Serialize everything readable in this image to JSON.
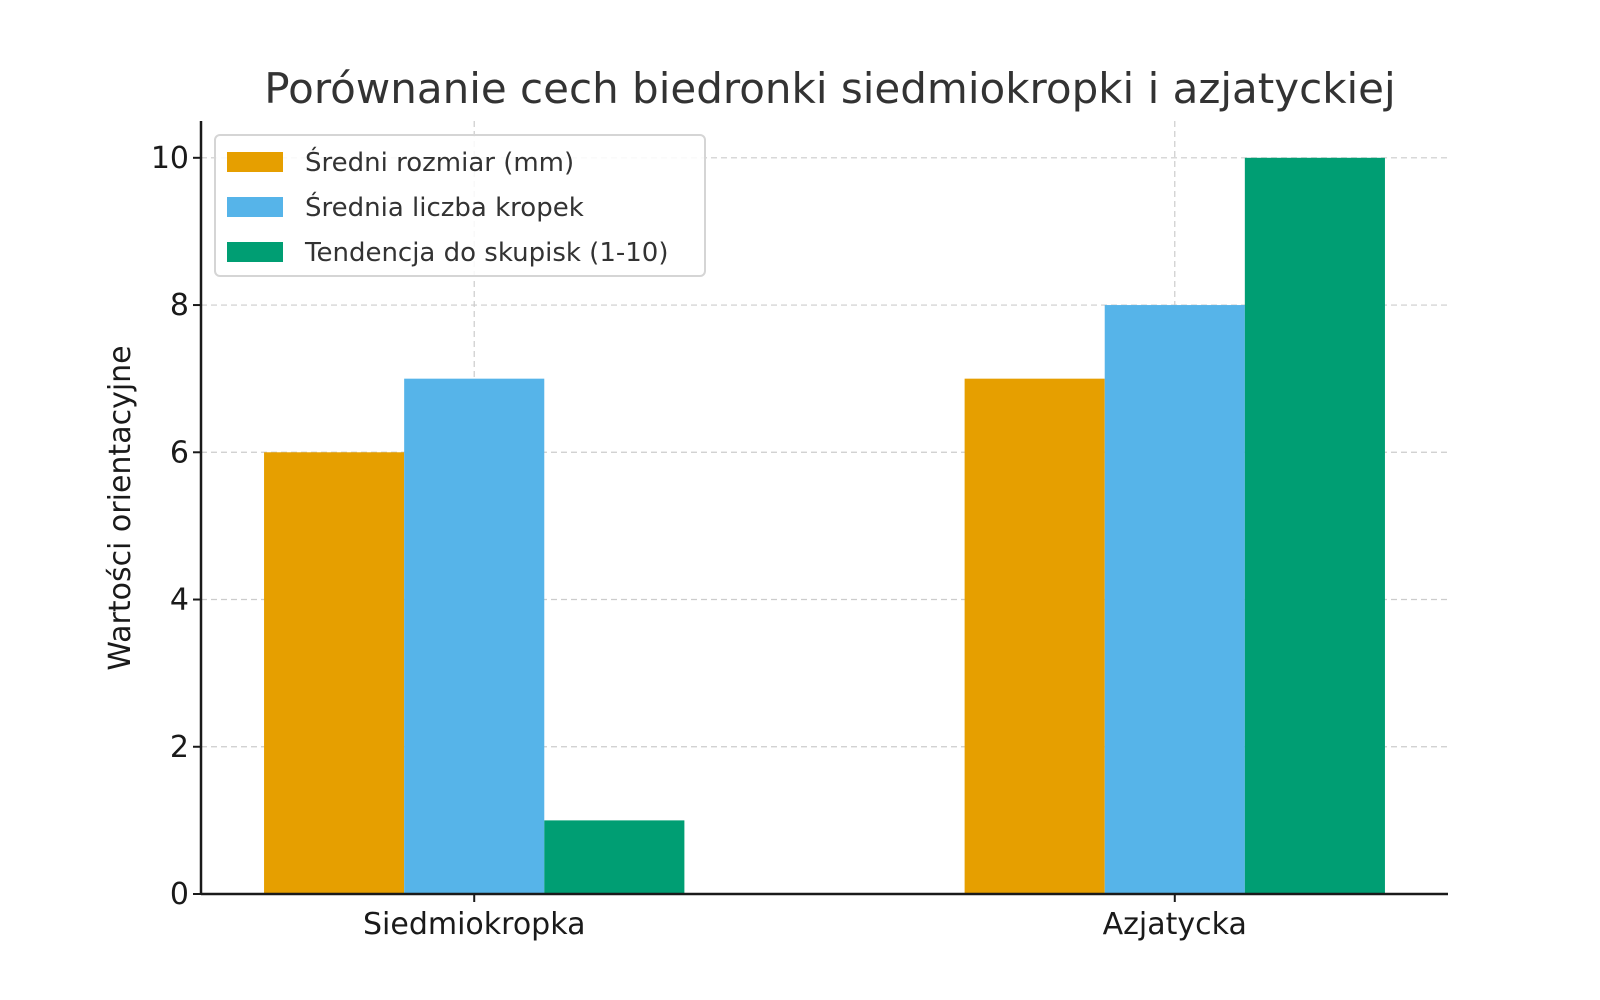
{
  "chart_data": {
    "type": "bar",
    "title": "Porównanie cech biedronki siedmiokropki i azjatyckiej",
    "xlabel": "",
    "ylabel": "Wartości orientacyjne",
    "categories": [
      "Siedmiokropka",
      "Azjatycka"
    ],
    "series": [
      {
        "name": "Średni rozmiar (mm)",
        "values": [
          6,
          7
        ],
        "color": "#E69F00"
      },
      {
        "name": "Średnia liczba kropek",
        "values": [
          7,
          8
        ],
        "color": "#56B4E9"
      },
      {
        "name": "Tendencja do skupisk (1-10)",
        "values": [
          1,
          10
        ],
        "color": "#009E73"
      }
    ],
    "ylim": [
      0,
      10.5
    ],
    "yticks": [
      0,
      2,
      4,
      6,
      8,
      10
    ],
    "grid": true,
    "legend_position": "top-left"
  }
}
